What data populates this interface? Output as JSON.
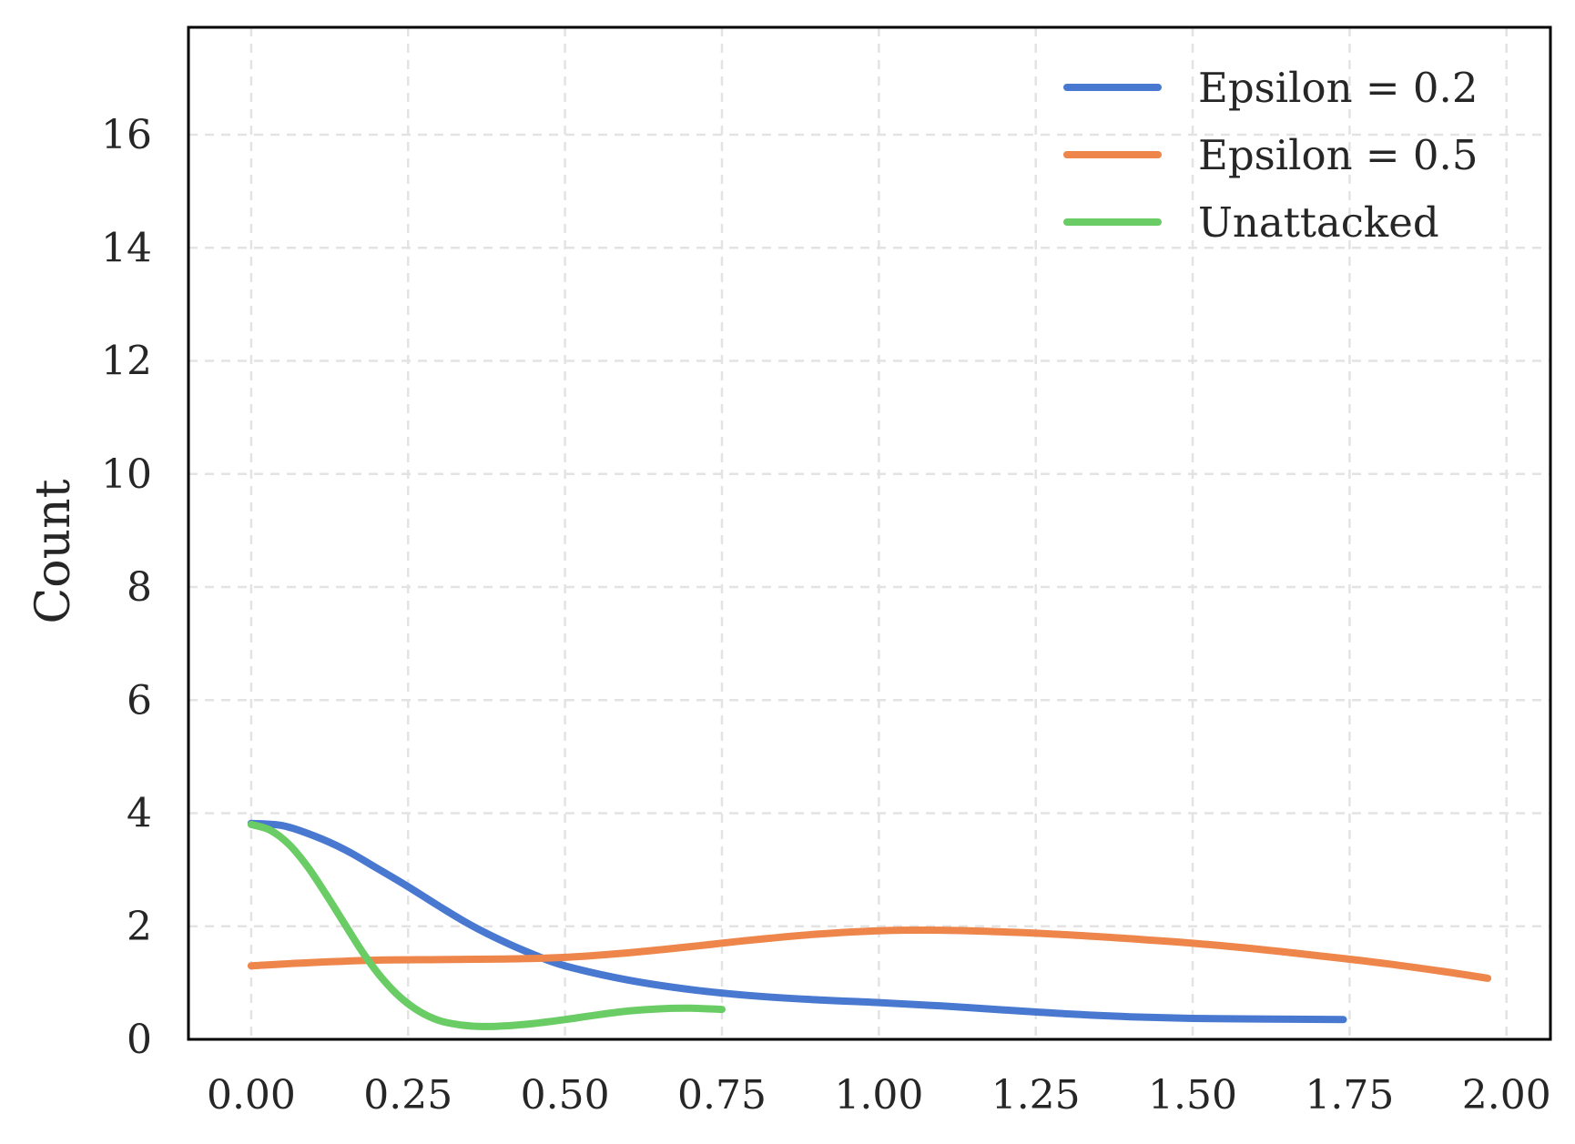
{
  "chart_data": {
    "type": "line",
    "title": "",
    "xlabel": "",
    "ylabel": "Count",
    "xlim": [
      -0.1,
      2.07
    ],
    "ylim": [
      0,
      17.9
    ],
    "x_ticks": [
      0,
      0.25,
      0.5,
      0.75,
      1.0,
      1.25,
      1.5,
      1.75,
      2.0
    ],
    "x_tick_labels": [
      "0.00",
      "0.25",
      "0.50",
      "0.75",
      "1.00",
      "1.25",
      "1.50",
      "1.75",
      "2.00"
    ],
    "y_ticks": [
      0,
      2,
      4,
      6,
      8,
      10,
      12,
      14,
      16
    ],
    "y_tick_labels": [
      "0",
      "2",
      "4",
      "6",
      "8",
      "10",
      "12",
      "14",
      "16"
    ],
    "grid": true,
    "legend_position": "upper-right",
    "series": [
      {
        "name": "Epsilon = 0.2",
        "color": "#4878d0",
        "x": [
          0.0,
          0.05,
          0.1,
          0.15,
          0.2,
          0.25,
          0.3,
          0.35,
          0.4,
          0.45,
          0.5,
          0.6,
          0.7,
          0.8,
          0.9,
          1.0,
          1.1,
          1.2,
          1.3,
          1.4,
          1.5,
          1.6,
          1.74
        ],
        "y": [
          3.82,
          3.78,
          3.6,
          3.35,
          3.03,
          2.7,
          2.35,
          2.02,
          1.74,
          1.5,
          1.3,
          1.05,
          0.88,
          0.77,
          0.7,
          0.65,
          0.59,
          0.52,
          0.45,
          0.4,
          0.37,
          0.36,
          0.35
        ]
      },
      {
        "name": "Epsilon = 0.5",
        "color": "#ee854a",
        "x": [
          0.0,
          0.1,
          0.2,
          0.3,
          0.4,
          0.5,
          0.6,
          0.7,
          0.8,
          0.9,
          1.0,
          1.1,
          1.2,
          1.3,
          1.4,
          1.5,
          1.6,
          1.7,
          1.8,
          1.9,
          1.97
        ],
        "y": [
          1.3,
          1.36,
          1.4,
          1.41,
          1.42,
          1.45,
          1.53,
          1.64,
          1.76,
          1.86,
          1.92,
          1.93,
          1.9,
          1.85,
          1.78,
          1.7,
          1.6,
          1.48,
          1.35,
          1.2,
          1.08
        ]
      },
      {
        "name": "Unattacked",
        "color": "#6acc64",
        "x": [
          0.0,
          0.03,
          0.06,
          0.09,
          0.12,
          0.15,
          0.18,
          0.21,
          0.24,
          0.27,
          0.3,
          0.33,
          0.36,
          0.39,
          0.42,
          0.45,
          0.5,
          0.55,
          0.6,
          0.65,
          0.7,
          0.75
        ],
        "y": [
          3.8,
          3.7,
          3.45,
          3.05,
          2.55,
          2.02,
          1.5,
          1.06,
          0.72,
          0.48,
          0.33,
          0.26,
          0.23,
          0.23,
          0.25,
          0.28,
          0.35,
          0.43,
          0.5,
          0.54,
          0.55,
          0.53
        ]
      }
    ]
  }
}
